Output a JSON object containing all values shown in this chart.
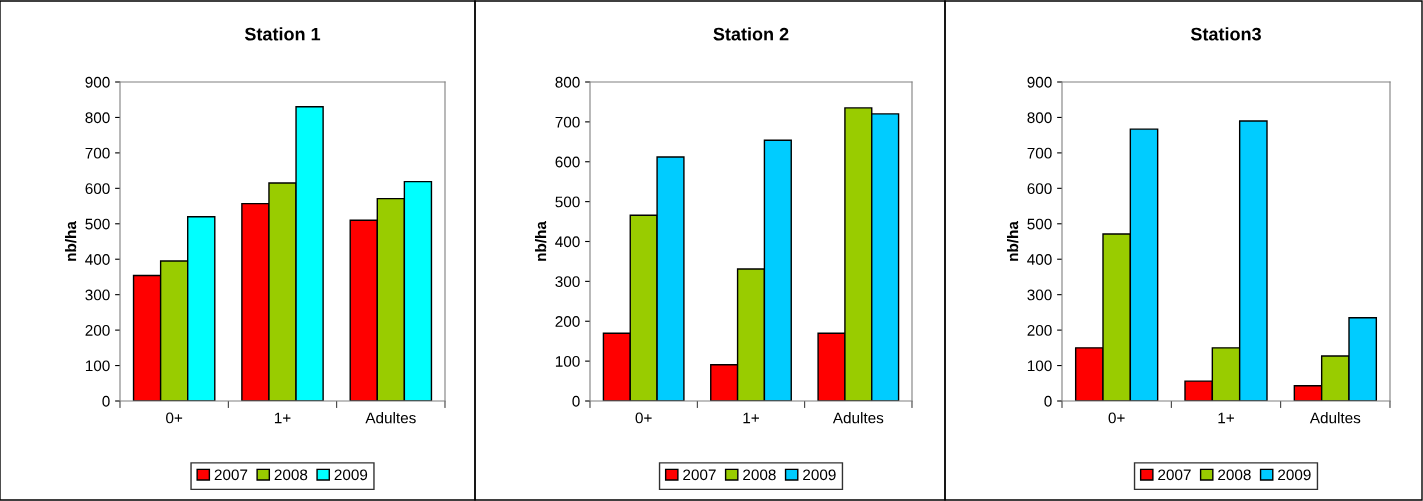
{
  "chart_data": [
    {
      "type": "bar",
      "title": "Station 1",
      "ylabel": "nb/ha",
      "categories": [
        "0+",
        "1+",
        "Adultes"
      ],
      "ylim": [
        0,
        900
      ],
      "yticks": [
        0,
        100,
        200,
        300,
        400,
        500,
        600,
        700,
        800,
        900
      ],
      "legend": "bottom",
      "grid": false,
      "series": [
        {
          "name": "2007",
          "color": "#ff0000",
          "values": [
            354,
            557,
            510
          ]
        },
        {
          "name": "2008",
          "color": "#99cc00",
          "values": [
            395,
            615,
            571
          ]
        },
        {
          "name": "2009",
          "color": "#00ffff",
          "values": [
            520,
            830,
            619
          ]
        }
      ]
    },
    {
      "type": "bar",
      "title": "Station 2",
      "ylabel": "nb/ha",
      "categories": [
        "0+",
        "1+",
        "Adultes"
      ],
      "ylim": [
        0,
        800
      ],
      "yticks": [
        0,
        100,
        200,
        300,
        400,
        500,
        600,
        700,
        800
      ],
      "legend": "bottom",
      "grid": false,
      "series": [
        {
          "name": "2007",
          "color": "#ff0000",
          "values": [
            170,
            91,
            170
          ]
        },
        {
          "name": "2008",
          "color": "#99cc00",
          "values": [
            466,
            331,
            735
          ]
        },
        {
          "name": "2009",
          "color": "#00ccff",
          "values": [
            612,
            654,
            720
          ]
        }
      ]
    },
    {
      "type": "bar",
      "title": "Station3",
      "ylabel": "nb/ha",
      "categories": [
        "0+",
        "1+",
        "Adultes"
      ],
      "ylim": [
        0,
        900
      ],
      "yticks": [
        0,
        100,
        200,
        300,
        400,
        500,
        600,
        700,
        800,
        900
      ],
      "legend": "bottom",
      "grid": false,
      "series": [
        {
          "name": "2007",
          "color": "#ff0000",
          "values": [
            150,
            56,
            43
          ]
        },
        {
          "name": "2008",
          "color": "#99cc00",
          "values": [
            471,
            150,
            127
          ]
        },
        {
          "name": "2009",
          "color": "#00ccff",
          "values": [
            767,
            790,
            235
          ]
        }
      ]
    }
  ]
}
